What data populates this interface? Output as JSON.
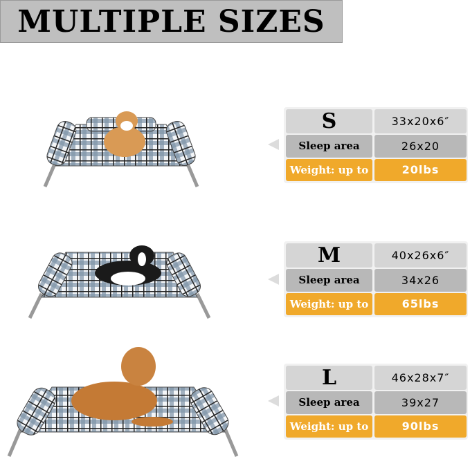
{
  "title": "MULTIPLE SIZES",
  "sizes": [
    {
      "size": "S",
      "dimensions": "33x20x6″",
      "sleep_label": "Sleep area",
      "sleep_area": "26x20",
      "weight_label": "Weight: up to",
      "weight": "20lbs"
    },
    {
      "size": "M",
      "dimensions": "40x26x6″",
      "sleep_label": "Sleep area",
      "sleep_area": "34x26",
      "weight_label": "Weight: up to",
      "weight": "65lbs"
    },
    {
      "size": "L",
      "dimensions": "46x28x7″",
      "sleep_label": "Sleep area",
      "sleep_area": "39x27",
      "weight_label": "Weight: up to",
      "weight": "90lbs"
    }
  ],
  "colors": {
    "banner": "#bfbfbf",
    "row_size": "#d5d5d5",
    "row_sleep": "#b8b8b8",
    "row_weight": "#f0a92b"
  }
}
